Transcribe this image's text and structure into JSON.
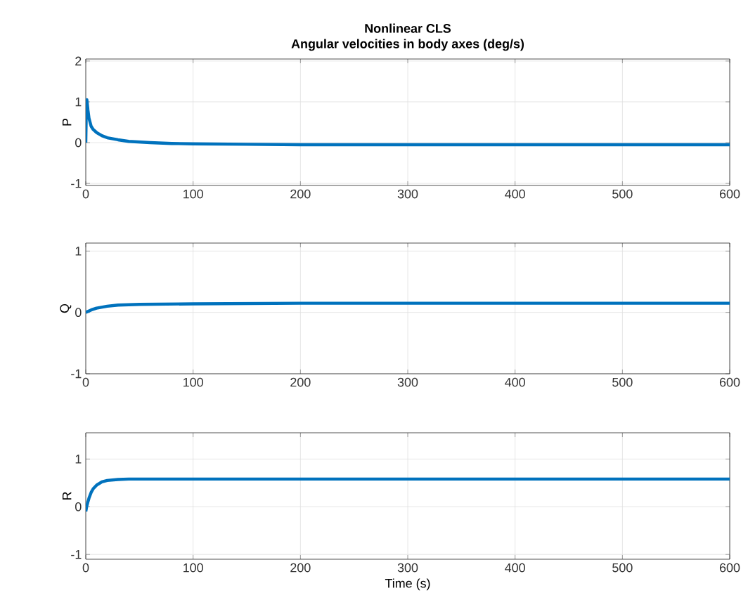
{
  "chart_data": [
    {
      "type": "line",
      "title": "Nonlinear CLS",
      "subtitle": "Angular velocities in body axes (deg/s)",
      "ylabel": "P",
      "xlim": [
        0,
        600
      ],
      "xticks": [
        0,
        100,
        200,
        300,
        400,
        500,
        600
      ],
      "ylim": [
        -1.05,
        2.05
      ],
      "yticks": [
        -1,
        0,
        1,
        2
      ],
      "grid": true,
      "series": [
        {
          "color": "#0072bd",
          "x": [
            0,
            0.5,
            1,
            2,
            3,
            5,
            7,
            10,
            15,
            20,
            30,
            40,
            60,
            80,
            100,
            150,
            200,
            300,
            400,
            500,
            600
          ],
          "values": [
            0,
            0.8,
            1.05,
            0.8,
            0.6,
            0.4,
            0.32,
            0.25,
            0.17,
            0.12,
            0.07,
            0.03,
            0,
            -0.02,
            -0.03,
            -0.04,
            -0.05,
            -0.05,
            -0.05,
            -0.05,
            -0.05
          ]
        }
      ]
    },
    {
      "type": "line",
      "ylabel": "Q",
      "xlim": [
        0,
        600
      ],
      "xticks": [
        0,
        100,
        200,
        300,
        400,
        500,
        600
      ],
      "ylim": [
        -1,
        1.13
      ],
      "yticks": [
        -1,
        0,
        1
      ],
      "grid": true,
      "series": [
        {
          "color": "#0072bd",
          "x": [
            0,
            5,
            10,
            20,
            30,
            50,
            100,
            200,
            300,
            400,
            500,
            600
          ],
          "values": [
            0,
            0.04,
            0.07,
            0.1,
            0.12,
            0.13,
            0.14,
            0.15,
            0.15,
            0.15,
            0.15,
            0.15
          ]
        }
      ]
    },
    {
      "type": "line",
      "ylabel": "R",
      "xlabel": "Time (s)",
      "xlim": [
        0,
        600
      ],
      "xticks": [
        0,
        100,
        200,
        300,
        400,
        500,
        600
      ],
      "ylim": [
        -1.1,
        1.55
      ],
      "yticks": [
        -1,
        0,
        1
      ],
      "grid": true,
      "series": [
        {
          "color": "#0072bd",
          "x": [
            0,
            1,
            2,
            3,
            5,
            7,
            10,
            15,
            20,
            30,
            40,
            100,
            200,
            300,
            400,
            500,
            600
          ],
          "values": [
            -0.1,
            0.02,
            0.1,
            0.18,
            0.3,
            0.38,
            0.45,
            0.52,
            0.55,
            0.57,
            0.58,
            0.58,
            0.58,
            0.58,
            0.58,
            0.58,
            0.58
          ]
        }
      ]
    }
  ]
}
